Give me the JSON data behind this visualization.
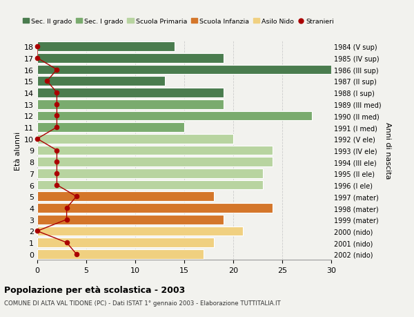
{
  "ages": [
    18,
    17,
    16,
    15,
    14,
    13,
    12,
    11,
    10,
    9,
    8,
    7,
    6,
    5,
    4,
    3,
    2,
    1,
    0
  ],
  "years": [
    "1984 (V sup)",
    "1985 (IV sup)",
    "1986 (III sup)",
    "1987 (II sup)",
    "1988 (I sup)",
    "1989 (III med)",
    "1990 (II med)",
    "1991 (I med)",
    "1992 (V ele)",
    "1993 (IV ele)",
    "1994 (III ele)",
    "1995 (II ele)",
    "1996 (I ele)",
    "1997 (mater)",
    "1998 (mater)",
    "1999 (mater)",
    "2000 (nido)",
    "2001 (nido)",
    "2002 (nido)"
  ],
  "values": [
    14,
    19,
    30,
    13,
    19,
    19,
    28,
    15,
    20,
    24,
    24,
    23,
    23,
    18,
    24,
    19,
    21,
    18,
    17
  ],
  "bar_colors": [
    "#4a7c4e",
    "#4a7c4e",
    "#4a7c4e",
    "#4a7c4e",
    "#4a7c4e",
    "#7aab6e",
    "#7aab6e",
    "#7aab6e",
    "#b8d4a0",
    "#b8d4a0",
    "#b8d4a0",
    "#b8d4a0",
    "#b8d4a0",
    "#d4762a",
    "#d4762a",
    "#d4762a",
    "#f0d080",
    "#f0d080",
    "#f0d080"
  ],
  "stranieri": [
    0,
    0,
    2,
    1,
    2,
    2,
    2,
    2,
    0,
    2,
    2,
    2,
    2,
    4,
    3,
    3,
    0,
    3,
    4
  ],
  "stranieri_color": "#aa0000",
  "background_color": "#f2f2ee",
  "plot_bg_color": "#f2f2ee",
  "title": "Popolazione per età scolastica - 2003",
  "subtitle": "COMUNE DI ALTA VAL TIDONE (PC) - Dati ISTAT 1° gennaio 2003 - Elaborazione TUTTITALIA.IT",
  "ylabel_left": "Età alunni",
  "ylabel_right": "Anni di nascita",
  "xlim": [
    0,
    30
  ],
  "ylim": [
    -0.5,
    18.5
  ],
  "legend_labels": [
    "Sec. II grado",
    "Sec. I grado",
    "Scuola Primaria",
    "Scuola Infanzia",
    "Asilo Nido",
    "Stranieri"
  ],
  "legend_colors": [
    "#4a7c4e",
    "#7aab6e",
    "#b8d4a0",
    "#d4762a",
    "#f0d080",
    "#aa0000"
  ],
  "grid_color": "#cccccc",
  "bar_height": 0.82
}
